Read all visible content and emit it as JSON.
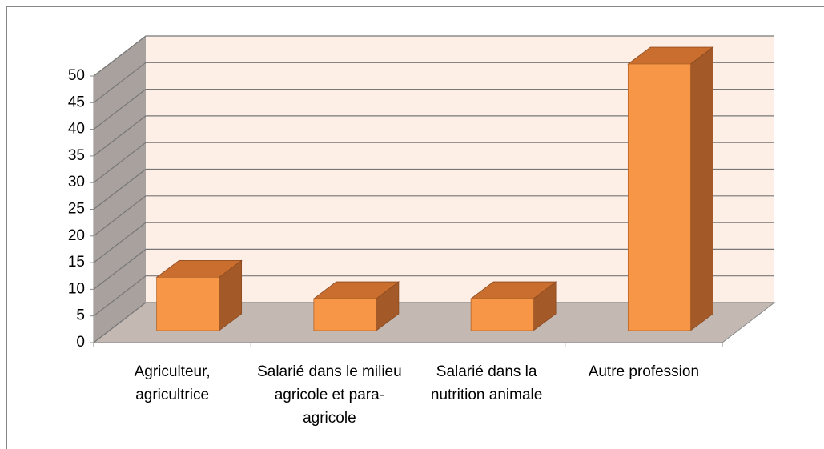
{
  "chart_data": {
    "type": "bar3d",
    "categories": [
      "Agriculteur, agricultrice",
      "Salarié dans le milieu agricole et para-agricole",
      "Salarié dans la nutrition animale",
      "Autre profession"
    ],
    "values": [
      10,
      6,
      6,
      50
    ],
    "color": "#f79646",
    "ylim": [
      0,
      50
    ],
    "yticks": [
      0,
      5,
      10,
      15,
      20,
      25,
      30,
      35,
      40,
      45,
      50
    ],
    "grid": true
  }
}
